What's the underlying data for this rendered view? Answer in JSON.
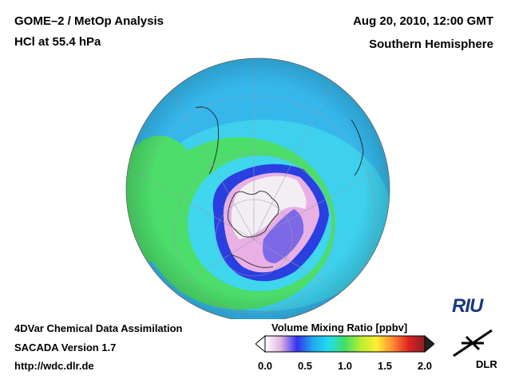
{
  "header": {
    "title_line1": "GOME–2 / MetOp Analysis",
    "title_line2": "HCl at 55.4 hPa",
    "date": "Aug 20, 2010, 12:00 GMT",
    "region": "Southern Hemisphere"
  },
  "footer": {
    "line1": "4DVar Chemical Data Assimilation",
    "line2": "SACADA Version 1.7",
    "line3": "http://wdc.dlr.de"
  },
  "colorbar": {
    "title": "Volume Mixing Ratio [ppbv]",
    "ticks": [
      "0.0",
      "0.5",
      "1.0",
      "1.5",
      "2.0"
    ],
    "range": [
      0.0,
      2.0
    ],
    "colors": [
      "#ffffff",
      "#e0b0e0",
      "#3333ee",
      "#22aaee",
      "#22ddee",
      "#44dd66",
      "#bbee33",
      "#ffee33",
      "#ff8833",
      "#dd2222",
      "#882222"
    ]
  },
  "logos": {
    "riu": "RIU",
    "dlr": "DLR"
  },
  "palette": {
    "ocean_blue": "#35b7ec",
    "cyan": "#3fd6ee",
    "green": "#4cdd6a",
    "deep_blue": "#2a3fe0",
    "pink": "#e8b0e4",
    "pale": "#f3eef3"
  }
}
